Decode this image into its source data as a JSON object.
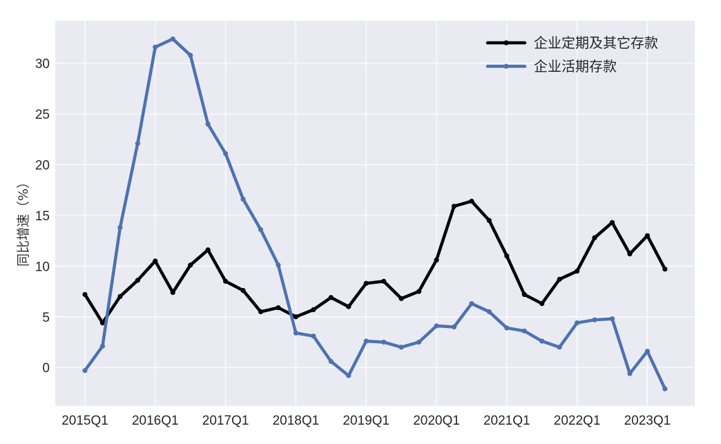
{
  "chart_data": {
    "type": "line",
    "title": "",
    "xlabel": "",
    "ylabel": "同比增速（%）",
    "x": [
      "2015Q1",
      "2015Q2",
      "2015Q3",
      "2015Q4",
      "2016Q1",
      "2016Q2",
      "2016Q3",
      "2016Q4",
      "2017Q1",
      "2017Q2",
      "2017Q3",
      "2017Q4",
      "2018Q1",
      "2018Q2",
      "2018Q3",
      "2018Q4",
      "2019Q1",
      "2019Q2",
      "2019Q3",
      "2019Q4",
      "2020Q1",
      "2020Q2",
      "2020Q3",
      "2020Q4",
      "2021Q1",
      "2021Q2",
      "2021Q3",
      "2021Q4",
      "2022Q1",
      "2022Q2",
      "2022Q3",
      "2022Q4",
      "2023Q1",
      "2023Q2"
    ],
    "xticks": [
      "2015Q1",
      "2016Q1",
      "2017Q1",
      "2018Q1",
      "2019Q1",
      "2020Q1",
      "2021Q1",
      "2022Q1",
      "2023Q1"
    ],
    "yticks": [
      0,
      5,
      10,
      15,
      20,
      25,
      30
    ],
    "ylim": [
      -3.8,
      34.2
    ],
    "grid": true,
    "legend_position": "top-right",
    "series": [
      {
        "name": "企业定期及其它存款",
        "color": "#000000",
        "values": [
          7.2,
          4.4,
          7.0,
          8.6,
          10.5,
          7.4,
          10.1,
          11.6,
          8.5,
          7.6,
          5.5,
          5.9,
          5.0,
          5.7,
          6.9,
          6.0,
          8.3,
          8.5,
          6.8,
          7.5,
          10.6,
          15.9,
          16.4,
          14.5,
          11.0,
          7.2,
          6.3,
          8.7,
          9.5,
          12.8,
          14.3,
          11.2,
          13.0,
          9.7
        ]
      },
      {
        "name": "企业活期存款",
        "color": "#4c72b0",
        "values": [
          -0.3,
          2.1,
          13.8,
          22.1,
          31.6,
          32.4,
          30.8,
          24.0,
          21.1,
          16.6,
          13.6,
          10.1,
          3.4,
          3.1,
          0.6,
          -0.8,
          2.6,
          2.5,
          2.0,
          2.5,
          4.1,
          4.0,
          6.3,
          5.5,
          3.9,
          3.6,
          2.6,
          2.0,
          4.4,
          4.7,
          4.8,
          -0.6,
          1.6,
          -2.1
        ]
      }
    ]
  }
}
